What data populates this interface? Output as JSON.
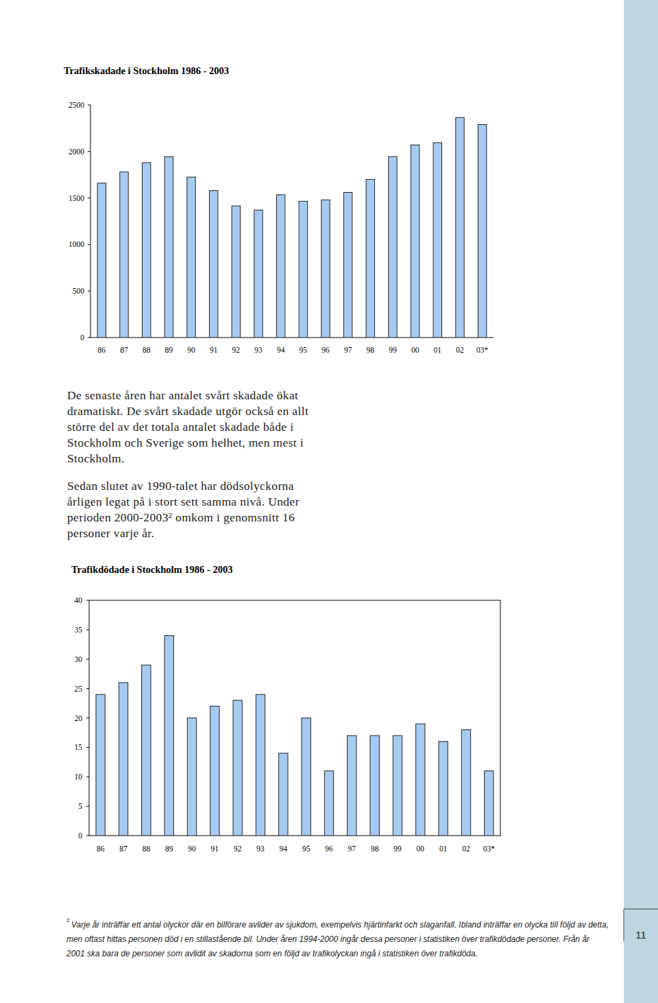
{
  "chart_data": [
    {
      "type": "bar",
      "title": "Trafikskadade i Stockholm 1986 - 2003",
      "categories": [
        "86",
        "87",
        "88",
        "89",
        "90",
        "91",
        "92",
        "93",
        "94",
        "95",
        "96",
        "97",
        "98",
        "99",
        "00",
        "01",
        "02",
        "03*"
      ],
      "values": [
        1660,
        1780,
        1880,
        1945,
        1725,
        1580,
        1415,
        1370,
        1535,
        1465,
        1480,
        1560,
        1700,
        1945,
        2070,
        2095,
        2365,
        2290
      ],
      "color": "#a6caf0",
      "ylim": [
        0,
        2500
      ],
      "yticks": [
        0,
        500,
        1000,
        1500,
        2000,
        2500
      ],
      "grid": false
    },
    {
      "type": "bar",
      "title": "Trafikdödade i Stockholm 1986 - 2003",
      "categories": [
        "86",
        "87",
        "88",
        "89",
        "90",
        "91",
        "92",
        "93",
        "94",
        "95",
        "96",
        "97",
        "98",
        "99",
        "00",
        "01",
        "02",
        "03*"
      ],
      "values": [
        24,
        26,
        29,
        34,
        20,
        22,
        23,
        24,
        14,
        20,
        11,
        17,
        17,
        17,
        19,
        16,
        18,
        11
      ],
      "color": "#a6caf0",
      "ylim": [
        0,
        40
      ],
      "yticks": [
        0,
        5,
        10,
        15,
        20,
        25,
        30,
        35,
        40
      ],
      "grid": false
    }
  ],
  "page": {
    "paragraphs": [
      [
        "De senaste åren har antalet svårt skadade ökat",
        "dramatiskt. De svårt skadade utgör också en allt",
        "större del av det totala antalet skadade både i",
        "Stockholm och Sverige som helhet, men mest i",
        "Stockholm."
      ],
      [
        "Sedan slutet av 1990-talet har dödsolyckorna",
        "årligen legat på i stort sett samma nivå. Under",
        "perioden 2000-2003² omkom i genomsnitt 16",
        "personer varje år."
      ]
    ],
    "footnote": {
      "marker": "2",
      "lines": [
        "Varje år inträffar ett antal olyckor där en bilförare avlider av sjukdom, exempelvis hjärtinfarkt och slaganfall. Ibland inträffar en olycka till följd av detta,",
        "men oftast hittas personen död i en stillastående bil. Under åren 1994-2000 ingår dessa personer i statistiken över trafikdödade personer. Från år",
        "2001 ska bara de personer som avlidit av skadorna som en följd av trafikolyckan ingå i statistiken över trafikdöda."
      ]
    },
    "page_number": "11"
  }
}
